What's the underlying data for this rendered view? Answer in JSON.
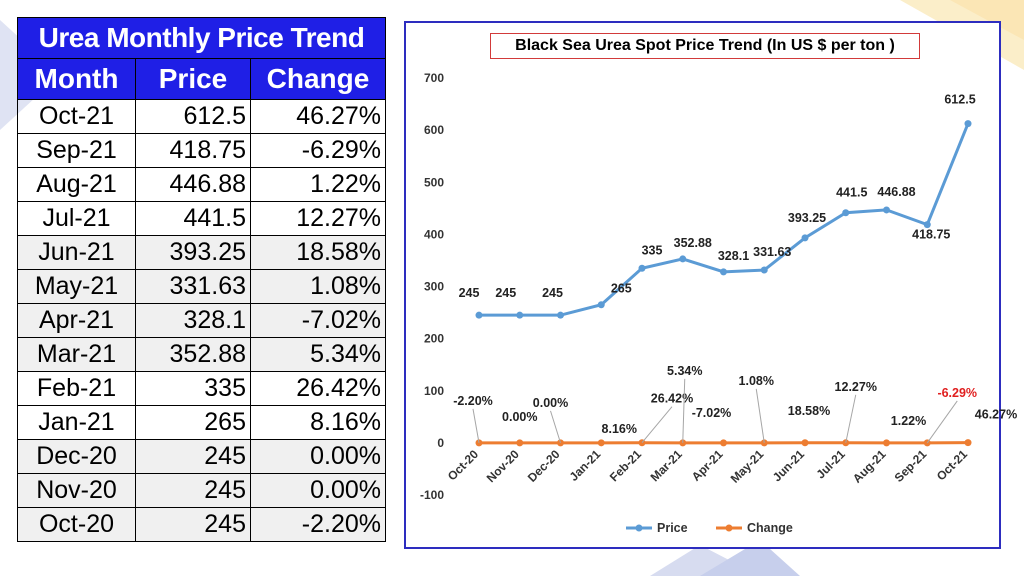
{
  "table": {
    "title": "Urea Monthly Price Trend",
    "headers": [
      "Month",
      "Price",
      "Change"
    ],
    "rows": [
      {
        "month": "Oct-21",
        "price": "612.5",
        "change": "46.27%"
      },
      {
        "month": "Sep-21",
        "price": "418.75",
        "change": "-6.29%"
      },
      {
        "month": "Aug-21",
        "price": "446.88",
        "change": "1.22%"
      },
      {
        "month": "Jul-21",
        "price": "441.5",
        "change": "12.27%"
      },
      {
        "month": "Jun-21",
        "price": "393.25",
        "change": "18.58%"
      },
      {
        "month": "May-21",
        "price": "331.63",
        "change": "1.08%"
      },
      {
        "month": "Apr-21",
        "price": "328.1",
        "change": "-7.02%"
      },
      {
        "month": "Mar-21",
        "price": "352.88",
        "change": "5.34%"
      },
      {
        "month": "Feb-21",
        "price": "335",
        "change": "26.42%"
      },
      {
        "month": "Jan-21",
        "price": "265",
        "change": "8.16%"
      },
      {
        "month": "Dec-20",
        "price": "245",
        "change": "0.00%"
      },
      {
        "month": "Nov-20",
        "price": "245",
        "change": "0.00%"
      },
      {
        "month": "Oct-20",
        "price": "245",
        "change": "-2.20%"
      }
    ]
  },
  "chart_data": {
    "type": "line",
    "title": "Black Sea Urea Spot Price Trend (In US $ per ton )",
    "categories": [
      "Oct-20",
      "Nov-20",
      "Dec-20",
      "Jan-21",
      "Feb-21",
      "Mar-21",
      "Apr-21",
      "May-21",
      "Jun-21",
      "Jul-21",
      "Aug-21",
      "Sep-21",
      "Oct-21"
    ],
    "ylim": [
      -100,
      700
    ],
    "yticks": [
      -100,
      0,
      100,
      200,
      300,
      400,
      500,
      600,
      700
    ],
    "grid": false,
    "legend_position": "bottom",
    "series": [
      {
        "name": "Price",
        "color": "#5b9bd5",
        "values": [
          245,
          245,
          245,
          265,
          335,
          352.88,
          328.1,
          331.63,
          393.25,
          441.5,
          446.88,
          418.75,
          612.5
        ],
        "labels": [
          "245",
          "245",
          "245",
          "265",
          "335",
          "352.88",
          "328.1",
          "331.63",
          "393.25",
          "441.5",
          "446.88",
          "418.75",
          "612.5"
        ]
      },
      {
        "name": "Change",
        "color": "#ed7d31",
        "values": [
          -0.022,
          0,
          0,
          0.0816,
          0.2642,
          0.0534,
          -0.0702,
          0.0108,
          0.1858,
          0.1227,
          0.0122,
          -0.0629,
          0.4627
        ],
        "labels": [
          "-2.20%",
          "0.00%",
          "0.00%",
          "8.16%",
          "26.42%",
          "5.34%",
          "-7.02%",
          "1.08%",
          "18.58%",
          "12.27%",
          "1.22%",
          "-6.29%",
          "46.27%"
        ],
        "highlight_label_index": 11,
        "highlight_color": "#e02020"
      }
    ]
  }
}
